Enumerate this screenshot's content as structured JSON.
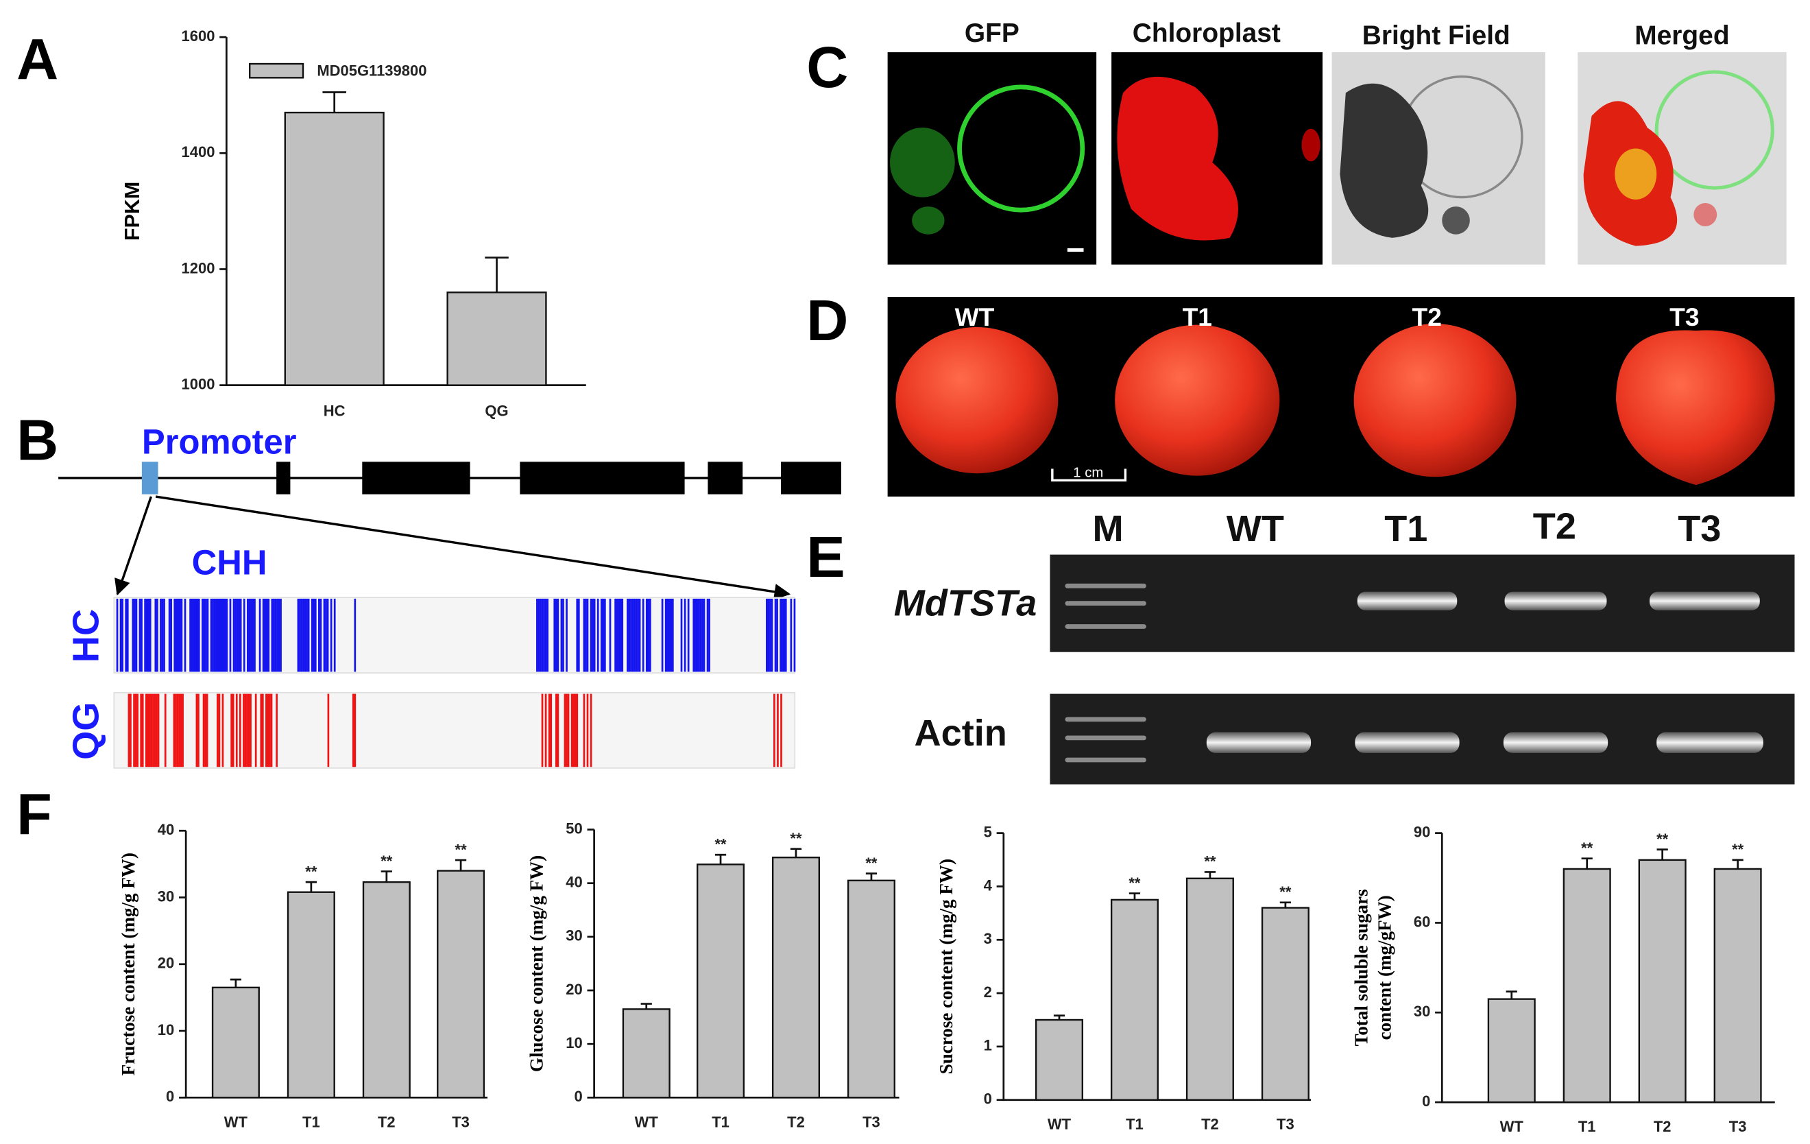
{
  "panel_labels": [
    "A",
    "B",
    "C",
    "D",
    "E",
    "F"
  ],
  "promoter": {
    "label": "Promoter",
    "context": "CHH",
    "tracks": [
      "HC",
      "QG"
    ]
  },
  "microscopy": {
    "channels": [
      "GFP",
      "Chloroplast",
      "Bright Field",
      "Merged"
    ]
  },
  "fruit": {
    "lines": [
      "WT",
      "T1",
      "T2",
      "T3"
    ],
    "scale_bar": "1 cm"
  },
  "gel": {
    "lanes": [
      "M",
      "WT",
      "T1",
      "T2",
      "T3"
    ],
    "genes": [
      "MdTSTa",
      "Actin"
    ]
  },
  "chart_data": [
    {
      "type": "bar",
      "y_label": [
        "FPKM"
      ],
      "categories": [
        "HC",
        "QG"
      ],
      "series": [
        {
          "name": "MD05G1139800",
          "color": "#c0c0c0",
          "values": [
            1470,
            1160
          ],
          "errors": [
            35,
            60
          ]
        }
      ],
      "ylim": [
        1000,
        1600
      ],
      "yticks": [
        1000,
        1200,
        1400,
        1600
      ]
    },
    {
      "type": "bar",
      "y_label": [
        "Fructose content (mg/g FW)"
      ],
      "categories": [
        "WT",
        "T1",
        "T2",
        "T3"
      ],
      "color": "#c0c0c0",
      "values": [
        16.5,
        30.8,
        32.3,
        34.0
      ],
      "errors": [
        1.2,
        1.5,
        1.6,
        1.6
      ],
      "significance": [
        null,
        "**",
        "**",
        "**"
      ],
      "ylim": [
        0,
        40
      ],
      "yticks": [
        0,
        10,
        20,
        30,
        40
      ]
    },
    {
      "type": "bar",
      "y_label": [
        "Glucose content (mg/g FW)"
      ],
      "categories": [
        "WT",
        "T1",
        "T2",
        "T3"
      ],
      "color": "#c0c0c0",
      "values": [
        16.5,
        43.5,
        44.8,
        40.5
      ],
      "errors": [
        1.0,
        1.8,
        1.6,
        1.3
      ],
      "significance": [
        null,
        "**",
        "**",
        "**"
      ],
      "ylim": [
        0,
        50
      ],
      "yticks": [
        0,
        10,
        20,
        30,
        40,
        50
      ]
    },
    {
      "type": "bar",
      "y_label": [
        "Sucrose content (mg/g FW)"
      ],
      "categories": [
        "WT",
        "T1",
        "T2",
        "T3"
      ],
      "color": "#c0c0c0",
      "values": [
        1.5,
        3.75,
        4.15,
        3.6
      ],
      "errors": [
        0.08,
        0.12,
        0.12,
        0.1
      ],
      "significance": [
        null,
        "**",
        "**",
        "**"
      ],
      "ylim": [
        0,
        5
      ],
      "yticks": [
        0,
        1,
        2,
        3,
        4,
        5
      ]
    },
    {
      "type": "bar",
      "y_label": [
        "Total soluble sugars",
        "content (mg/gFW)"
      ],
      "categories": [
        "WT",
        "T1",
        "T2",
        "T3"
      ],
      "color": "#c0c0c0",
      "values": [
        34.5,
        78,
        81,
        78
      ],
      "errors": [
        2.5,
        3.5,
        3.5,
        3.0
      ],
      "significance": [
        null,
        "**",
        "**",
        "**"
      ],
      "ylim": [
        0,
        90
      ],
      "yticks": [
        0,
        30,
        60,
        90
      ]
    }
  ]
}
